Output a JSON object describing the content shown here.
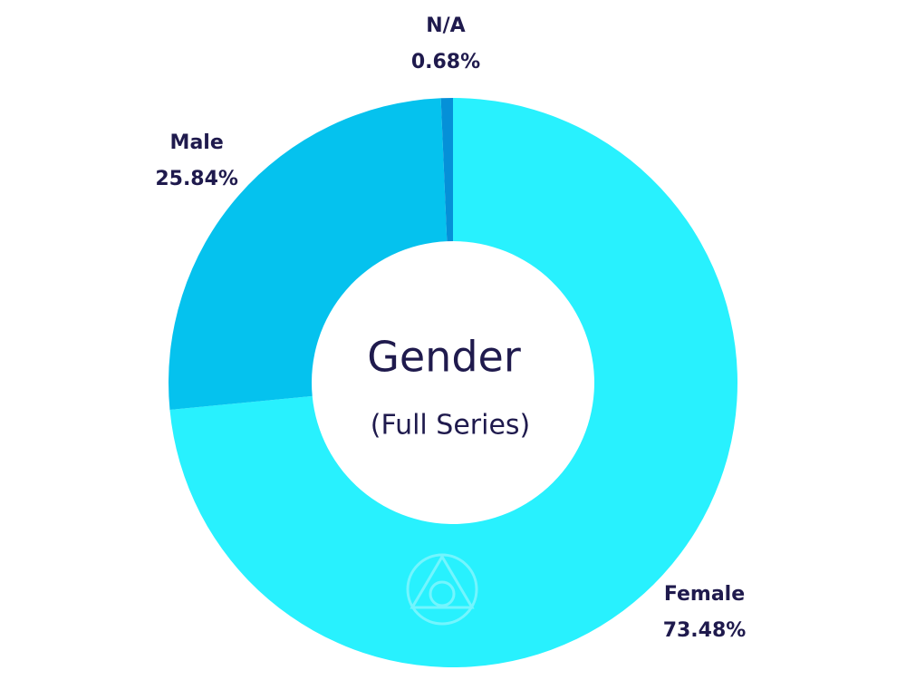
{
  "chart_data": {
    "type": "donut",
    "title": "Gender",
    "subtitle": "(Full Series)",
    "categories": [
      "Female",
      "Male",
      "N/A"
    ],
    "values": [
      73.48,
      25.84,
      0.68
    ],
    "value_labels": [
      "73.48%",
      "25.84%",
      "0.68%"
    ],
    "colors": [
      "#28f1fe",
      "#05c2ee",
      "#0590d8"
    ]
  }
}
